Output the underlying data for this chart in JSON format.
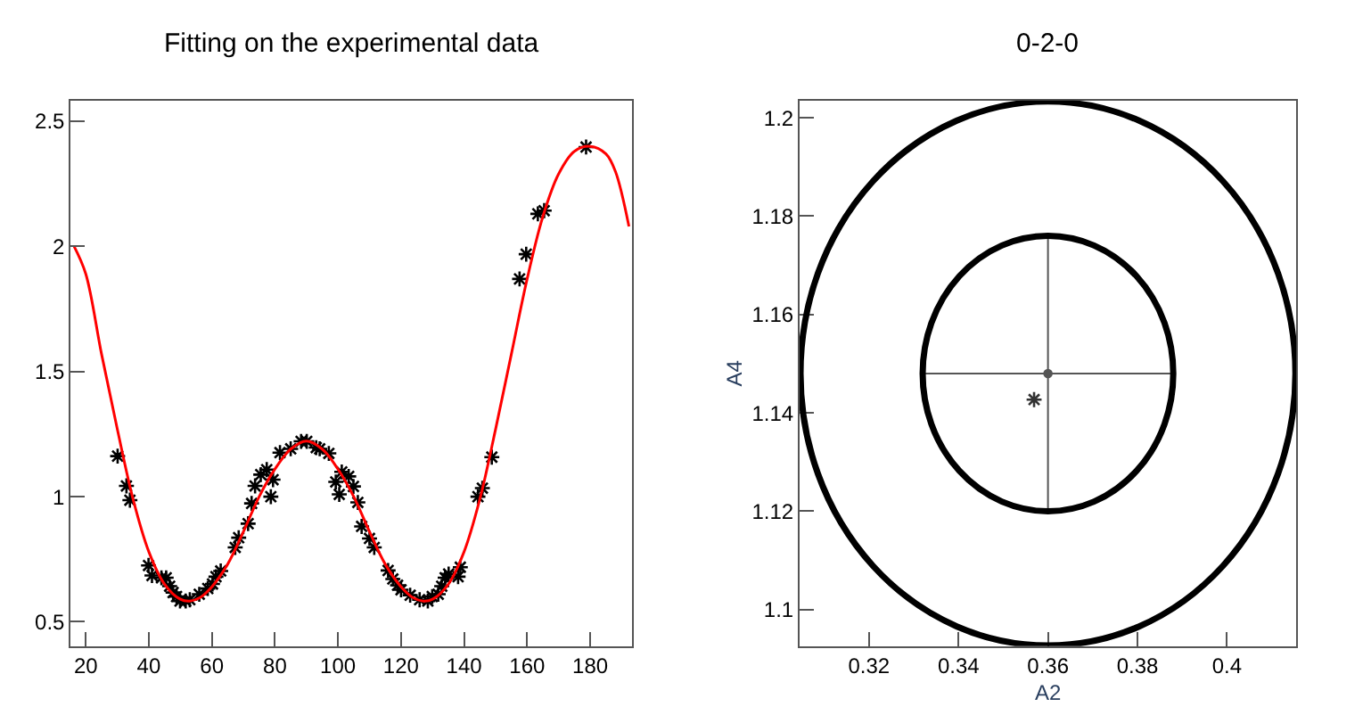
{
  "chart_data": [
    {
      "type": "scatter",
      "title": "Fitting on the experimental data",
      "xlim": [
        15.2,
        193.2
      ],
      "ylim": [
        0.403,
        2.583
      ],
      "xticks": [
        20,
        40,
        60,
        80,
        100,
        120,
        140,
        160,
        180
      ],
      "yticks": [
        0.5,
        1,
        1.5,
        2,
        2.5
      ],
      "series": [
        {
          "marker": "cross",
          "color": "#000000",
          "x": [
            30.1,
            32.9,
            34.0,
            39.9,
            41.0,
            44.0,
            45.5,
            46.6,
            47.7,
            48.8,
            49.9,
            51.7,
            53.0,
            56.0,
            58.7,
            60.2,
            61.3,
            62.8,
            67.4,
            68.5,
            71.5,
            72.6,
            73.7,
            75.5,
            77.4,
            78.7,
            79.4,
            81.6,
            85.0,
            88.3,
            90.1,
            93.1,
            94.2,
            97.1,
            99.3,
            100.4,
            101.2,
            103.4,
            104.9,
            106.3,
            107.5,
            110.0,
            111.5,
            115.9,
            117.4,
            118.9,
            120.0,
            122.9,
            125.9,
            128.5,
            129.9,
            131.8,
            132.9,
            134.0,
            135.1,
            138.1,
            138.8,
            144.4,
            145.8,
            148.8,
            157.6,
            159.7,
            163.4,
            165.4,
            178.7
          ],
          "values": [
            1.162,
            1.043,
            0.986,
            0.725,
            0.685,
            0.676,
            0.676,
            0.642,
            0.617,
            0.601,
            0.583,
            0.583,
            0.588,
            0.61,
            0.633,
            0.651,
            0.68,
            0.703,
            0.797,
            0.836,
            0.892,
            0.973,
            1.043,
            1.088,
            1.108,
            1.0,
            1.068,
            1.176,
            1.191,
            1.221,
            1.221,
            1.196,
            1.191,
            1.173,
            1.059,
            1.009,
            1.099,
            1.081,
            1.041,
            0.977,
            0.881,
            0.833,
            0.797,
            0.705,
            0.671,
            0.646,
            0.628,
            0.606,
            0.588,
            0.583,
            0.601,
            0.61,
            0.642,
            0.676,
            0.691,
            0.68,
            0.718,
            1.0,
            1.034,
            1.158,
            1.87,
            1.969,
            2.13,
            2.143,
            2.397
          ]
        },
        {
          "type": "line",
          "marker": "none",
          "color": "#ff0000",
          "x": [
            16.3,
            20,
            25,
            30,
            35,
            40,
            45,
            50,
            53,
            56,
            60,
            65,
            70,
            75,
            80,
            85,
            90,
            95,
            100,
            105,
            110,
            115,
            120,
            124,
            127,
            130,
            135,
            140,
            145,
            150,
            155,
            160,
            165,
            170,
            175,
            180,
            185,
            188,
            192.3
          ],
          "values": [
            2.0,
            1.89,
            1.57,
            1.27,
            0.99,
            0.78,
            0.65,
            0.59,
            0.583,
            0.595,
            0.64,
            0.73,
            0.86,
            1.0,
            1.11,
            1.19,
            1.222,
            1.19,
            1.11,
            1.0,
            0.86,
            0.73,
            0.64,
            0.595,
            0.583,
            0.59,
            0.65,
            0.78,
            0.99,
            1.27,
            1.57,
            1.87,
            2.12,
            2.29,
            2.38,
            2.4,
            2.37,
            2.3,
            2.08
          ]
        }
      ]
    },
    {
      "type": "line",
      "title": "0-2-0",
      "xlabel": "A2",
      "ylabel": "A4",
      "xlim": [
        0.3045,
        0.4155
      ],
      "ylim": [
        1.0926,
        1.2035
      ],
      "xticks": [
        0.32,
        0.34,
        0.36,
        0.38,
        0.4
      ],
      "yticks": [
        1.1,
        1.12,
        1.14,
        1.16,
        1.18,
        1.2
      ],
      "series": [
        {
          "type": "scatter",
          "marker": "circle",
          "color": "#555555",
          "x": [
            0.36
          ],
          "values": [
            1.148
          ],
          "errors": [
            0.028
          ],
          "xerrors": [
            0.028
          ]
        },
        {
          "type": "scatter",
          "marker": "cross",
          "color": "#333333",
          "x": [
            0.3569
          ],
          "values": [
            1.1427
          ]
        }
      ]
    }
  ]
}
